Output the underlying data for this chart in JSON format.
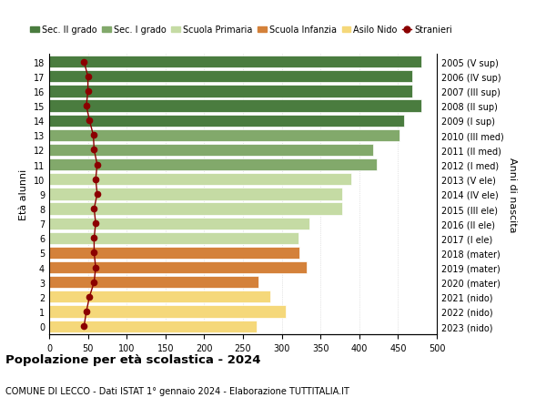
{
  "ages": [
    18,
    17,
    16,
    15,
    14,
    13,
    12,
    11,
    10,
    9,
    8,
    7,
    6,
    5,
    4,
    3,
    2,
    1,
    0
  ],
  "right_labels": [
    "2005 (V sup)",
    "2006 (IV sup)",
    "2007 (III sup)",
    "2008 (II sup)",
    "2009 (I sup)",
    "2010 (III med)",
    "2011 (II med)",
    "2012 (I med)",
    "2013 (V ele)",
    "2014 (IV ele)",
    "2015 (III ele)",
    "2016 (II ele)",
    "2017 (I ele)",
    "2018 (mater)",
    "2019 (mater)",
    "2020 (mater)",
    "2021 (nido)",
    "2022 (nido)",
    "2023 (nido)"
  ],
  "bar_values": [
    480,
    468,
    468,
    480,
    458,
    452,
    418,
    422,
    390,
    378,
    378,
    336,
    322,
    323,
    332,
    270,
    285,
    305,
    268
  ],
  "bar_colors": [
    "#4a7c3f",
    "#4a7c3f",
    "#4a7c3f",
    "#4a7c3f",
    "#4a7c3f",
    "#82a96b",
    "#82a96b",
    "#82a96b",
    "#c5dba4",
    "#c5dba4",
    "#c5dba4",
    "#c5dba4",
    "#c5dba4",
    "#d4813a",
    "#d4813a",
    "#d4813a",
    "#f5d87a",
    "#f5d87a",
    "#f5d87a"
  ],
  "stranieri_values": [
    45,
    50,
    50,
    48,
    52,
    57,
    58,
    62,
    60,
    62,
    58,
    60,
    58,
    58,
    60,
    58,
    52,
    48,
    45
  ],
  "stranieri_color": "#8b0000",
  "xlim": [
    0,
    500
  ],
  "xticks": [
    0,
    50,
    100,
    150,
    200,
    250,
    300,
    350,
    400,
    450,
    500
  ],
  "ylabel_left": "Età alunni",
  "ylabel_right": "Anni di nascita",
  "title": "Popolazione per età scolastica - 2024",
  "subtitle": "COMUNE DI LECCO - Dati ISTAT 1° gennaio 2024 - Elaborazione TUTTITALIA.IT",
  "legend_items": [
    {
      "label": "Sec. II grado",
      "color": "#4a7c3f"
    },
    {
      "label": "Sec. I grado",
      "color": "#82a96b"
    },
    {
      "label": "Scuola Primaria",
      "color": "#c5dba4"
    },
    {
      "label": "Scuola Infanzia",
      "color": "#d4813a"
    },
    {
      "label": "Asilo Nido",
      "color": "#f5d87a"
    },
    {
      "label": "Stranieri",
      "color": "#8b0000"
    }
  ],
  "background_color": "#ffffff",
  "grid_color": "#cccccc",
  "bar_height": 0.82
}
